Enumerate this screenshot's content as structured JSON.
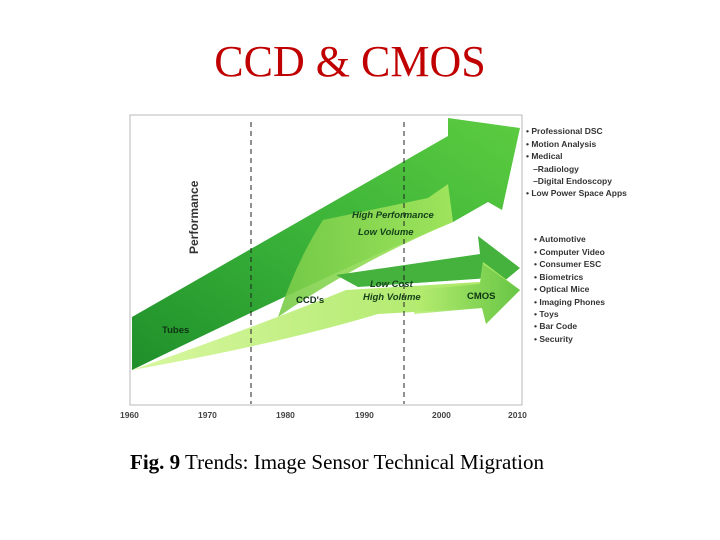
{
  "title": "CCD & CMOS",
  "figure": {
    "y_axis_label": "Performance",
    "x_ticks": [
      "1960",
      "1970",
      "1980",
      "1990",
      "2000",
      "2010"
    ],
    "labels": {
      "high_perf": "High Performance",
      "low_volume": "Low Volume",
      "low_cost": "Low Cost",
      "high_volume": "High Volume",
      "tubes": "Tubes",
      "ccds": "CCD's",
      "cmos": "CMOS"
    },
    "ccd_applications": [
      "• Professional DSC",
      "• Motion Analysis",
      "• Medical",
      "   –Radiology",
      "   –Digital Endoscopy",
      "• Low Power Space Apps"
    ],
    "cmos_applications": [
      "• Automotive",
      "• Computer Video",
      "• Consumer ESC",
      "• Biometrics",
      "• Optical Mice",
      "• Imaging Phones",
      "• Toys",
      "• Bar Code",
      "• Security"
    ],
    "colors": {
      "dark_green": "#2e9e2e",
      "mid_green": "#66cc44",
      "light_green": "#ccf58a"
    }
  },
  "caption": {
    "prefix": "Fig. 9",
    "text": " Trends: Image Sensor Technical Migration"
  }
}
